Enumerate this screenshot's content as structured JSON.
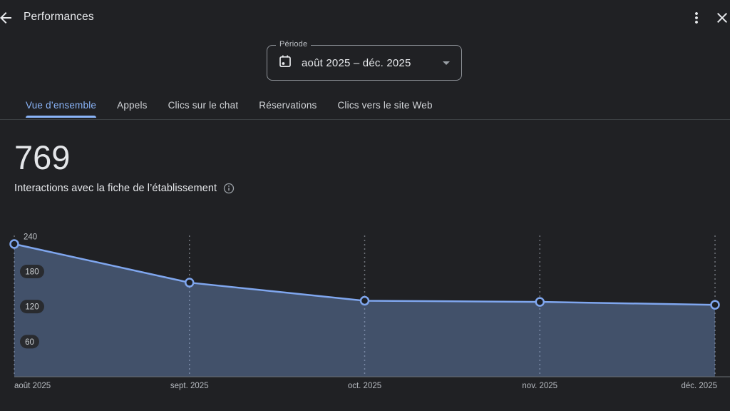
{
  "app_bar": {
    "title": "Performances",
    "back_icon": "arrow-back",
    "menu_icon": "more-vert",
    "close_icon": "close"
  },
  "period_selector": {
    "label": "Période",
    "value": "août 2025 – déc. 2025",
    "icon": "calendar-icon",
    "caret": "dropdown-caret"
  },
  "tabs": [
    {
      "label": "Vue d’ensemble",
      "active": true
    },
    {
      "label": "Appels",
      "active": false
    },
    {
      "label": "Clics sur le chat",
      "active": false
    },
    {
      "label": "Réservations",
      "active": false
    },
    {
      "label": "Clics vers le site Web",
      "active": false
    }
  ],
  "metric": {
    "value": "769",
    "label": "Interactions avec la fiche de l’établissement",
    "info_icon": "info-icon"
  },
  "chart_data": {
    "type": "area",
    "title": "Interactions avec la fiche de l’établissement",
    "x": [
      "août 2025",
      "sept. 2025",
      "oct. 2025",
      "nov. 2025",
      "déc. 2025"
    ],
    "values": [
      227,
      161,
      130,
      128,
      123
    ],
    "y_ticks": [
      60,
      120,
      180,
      240
    ],
    "ylim": [
      0,
      240
    ],
    "xlabel": "",
    "ylabel": "",
    "legend": "none",
    "grid": "vertical-dashed",
    "line_color": "#7fa6ee",
    "fill_color": "rgba(138,180,248,0.33)",
    "grid_color": "#70747b",
    "point_fill": "#1d2025",
    "baseline_color": "#6a6e74",
    "tick_label_color": "#bdc1c6",
    "pill_bg": "#292b2f",
    "pill_text": "#ccd0d4"
  },
  "colors": {
    "background": "#202124",
    "accent": "#8ab4f8",
    "text_primary": "#e8eaed",
    "text_secondary": "#bdc1c6",
    "divider": "#3c4043"
  }
}
